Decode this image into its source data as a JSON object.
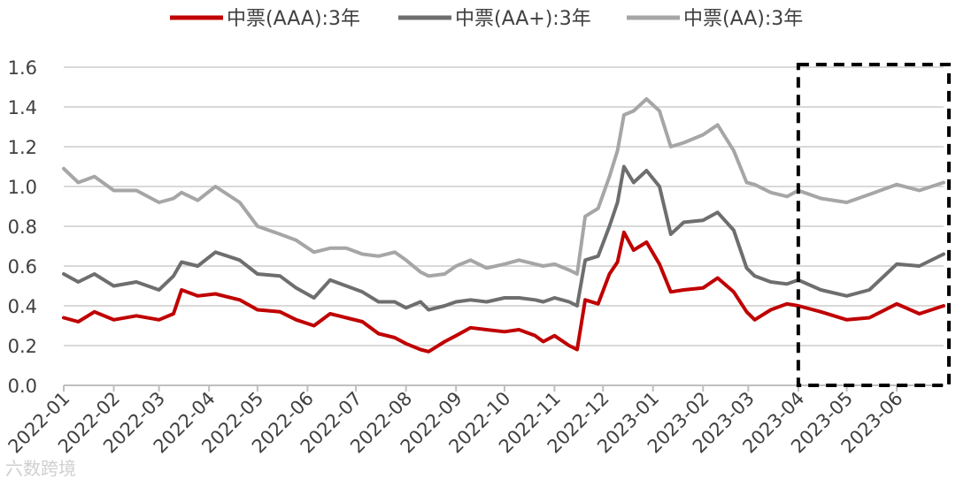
{
  "chart_data": {
    "type": "line",
    "title": "",
    "xlabel": "",
    "ylabel": "",
    "ylim": [
      0,
      1.6
    ],
    "yticks": [
      "0.0",
      "0.2",
      "0.4",
      "0.6",
      "0.8",
      "1.0",
      "1.2",
      "1.4",
      "1.6"
    ],
    "categories": [
      "2022-01",
      "2022-02",
      "2022-03",
      "2022-04",
      "2022-05",
      "2022-06",
      "2022-07",
      "2022-08",
      "2022-09",
      "2022-10",
      "2022-11",
      "2022-12",
      "2023-01",
      "2023-02",
      "2023-03",
      "2023-04",
      "2023-05",
      "2023-06"
    ],
    "grid": true,
    "legend_position": "top",
    "highlight_range": [
      "2023-04",
      "2023-06"
    ],
    "series": [
      {
        "name": "中票(AAA):3年",
        "color": "#c00000",
        "points": [
          [
            "2022-01-01",
            0.34
          ],
          [
            "2022-01-10",
            0.32
          ],
          [
            "2022-01-20",
            0.37
          ],
          [
            "2022-02-01",
            0.33
          ],
          [
            "2022-02-15",
            0.35
          ],
          [
            "2022-03-01",
            0.33
          ],
          [
            "2022-03-10",
            0.36
          ],
          [
            "2022-03-15",
            0.48
          ],
          [
            "2022-03-25",
            0.45
          ],
          [
            "2022-04-05",
            0.46
          ],
          [
            "2022-04-20",
            0.43
          ],
          [
            "2022-05-01",
            0.38
          ],
          [
            "2022-05-15",
            0.37
          ],
          [
            "2022-05-25",
            0.33
          ],
          [
            "2022-06-05",
            0.3
          ],
          [
            "2022-06-15",
            0.36
          ],
          [
            "2022-06-25",
            0.34
          ],
          [
            "2022-07-05",
            0.32
          ],
          [
            "2022-07-15",
            0.26
          ],
          [
            "2022-07-25",
            0.24
          ],
          [
            "2022-08-01",
            0.21
          ],
          [
            "2022-08-10",
            0.18
          ],
          [
            "2022-08-15",
            0.17
          ],
          [
            "2022-08-25",
            0.22
          ],
          [
            "2022-09-01",
            0.25
          ],
          [
            "2022-09-10",
            0.29
          ],
          [
            "2022-09-20",
            0.28
          ],
          [
            "2022-10-01",
            0.27
          ],
          [
            "2022-10-10",
            0.28
          ],
          [
            "2022-10-20",
            0.25
          ],
          [
            "2022-10-25",
            0.22
          ],
          [
            "2022-11-01",
            0.25
          ],
          [
            "2022-11-10",
            0.2
          ],
          [
            "2022-11-15",
            0.18
          ],
          [
            "2022-11-20",
            0.43
          ],
          [
            "2022-11-28",
            0.41
          ],
          [
            "2022-12-05",
            0.56
          ],
          [
            "2022-12-10",
            0.62
          ],
          [
            "2022-12-14",
            0.77
          ],
          [
            "2022-12-20",
            0.68
          ],
          [
            "2022-12-28",
            0.72
          ],
          [
            "2023-01-05",
            0.61
          ],
          [
            "2023-01-12",
            0.47
          ],
          [
            "2023-01-20",
            0.48
          ],
          [
            "2023-02-01",
            0.49
          ],
          [
            "2023-02-10",
            0.54
          ],
          [
            "2023-02-20",
            0.47
          ],
          [
            "2023-02-28",
            0.37
          ],
          [
            "2023-03-05",
            0.33
          ],
          [
            "2023-03-15",
            0.38
          ],
          [
            "2023-03-25",
            0.41
          ],
          [
            "2023-04-01",
            0.4
          ],
          [
            "2023-04-15",
            0.37
          ],
          [
            "2023-05-01",
            0.33
          ],
          [
            "2023-05-15",
            0.34
          ],
          [
            "2023-06-01",
            0.41
          ],
          [
            "2023-06-15",
            0.36
          ],
          [
            "2023-06-30",
            0.4
          ]
        ]
      },
      {
        "name": "中票(AA+):3年",
        "color": "#6e6e6e",
        "points": [
          [
            "2022-01-01",
            0.56
          ],
          [
            "2022-01-10",
            0.52
          ],
          [
            "2022-01-20",
            0.56
          ],
          [
            "2022-02-01",
            0.5
          ],
          [
            "2022-02-15",
            0.52
          ],
          [
            "2022-03-01",
            0.48
          ],
          [
            "2022-03-10",
            0.55
          ],
          [
            "2022-03-15",
            0.62
          ],
          [
            "2022-03-25",
            0.6
          ],
          [
            "2022-04-05",
            0.67
          ],
          [
            "2022-04-20",
            0.63
          ],
          [
            "2022-05-01",
            0.56
          ],
          [
            "2022-05-15",
            0.55
          ],
          [
            "2022-05-25",
            0.49
          ],
          [
            "2022-06-05",
            0.44
          ],
          [
            "2022-06-15",
            0.53
          ],
          [
            "2022-06-25",
            0.5
          ],
          [
            "2022-07-05",
            0.47
          ],
          [
            "2022-07-15",
            0.42
          ],
          [
            "2022-07-25",
            0.42
          ],
          [
            "2022-08-01",
            0.39
          ],
          [
            "2022-08-10",
            0.42
          ],
          [
            "2022-08-15",
            0.38
          ],
          [
            "2022-08-25",
            0.4
          ],
          [
            "2022-09-01",
            0.42
          ],
          [
            "2022-09-10",
            0.43
          ],
          [
            "2022-09-20",
            0.42
          ],
          [
            "2022-10-01",
            0.44
          ],
          [
            "2022-10-10",
            0.44
          ],
          [
            "2022-10-20",
            0.43
          ],
          [
            "2022-10-25",
            0.42
          ],
          [
            "2022-11-01",
            0.44
          ],
          [
            "2022-11-10",
            0.42
          ],
          [
            "2022-11-15",
            0.4
          ],
          [
            "2022-11-20",
            0.63
          ],
          [
            "2022-11-28",
            0.65
          ],
          [
            "2022-12-05",
            0.8
          ],
          [
            "2022-12-10",
            0.92
          ],
          [
            "2022-12-14",
            1.1
          ],
          [
            "2022-12-20",
            1.02
          ],
          [
            "2022-12-28",
            1.08
          ],
          [
            "2023-01-05",
            1.0
          ],
          [
            "2023-01-12",
            0.76
          ],
          [
            "2023-01-20",
            0.82
          ],
          [
            "2023-02-01",
            0.83
          ],
          [
            "2023-02-10",
            0.87
          ],
          [
            "2023-02-20",
            0.78
          ],
          [
            "2023-02-28",
            0.59
          ],
          [
            "2023-03-05",
            0.55
          ],
          [
            "2023-03-15",
            0.52
          ],
          [
            "2023-03-25",
            0.51
          ],
          [
            "2023-04-01",
            0.53
          ],
          [
            "2023-04-15",
            0.48
          ],
          [
            "2023-05-01",
            0.45
          ],
          [
            "2023-05-15",
            0.48
          ],
          [
            "2023-06-01",
            0.61
          ],
          [
            "2023-06-15",
            0.6
          ],
          [
            "2023-06-30",
            0.66
          ]
        ]
      },
      {
        "name": "中票(AA):3年",
        "color": "#a6a6a6",
        "points": [
          [
            "2022-01-01",
            1.09
          ],
          [
            "2022-01-10",
            1.02
          ],
          [
            "2022-01-20",
            1.05
          ],
          [
            "2022-02-01",
            0.98
          ],
          [
            "2022-02-15",
            0.98
          ],
          [
            "2022-03-01",
            0.92
          ],
          [
            "2022-03-10",
            0.94
          ],
          [
            "2022-03-15",
            0.97
          ],
          [
            "2022-03-25",
            0.93
          ],
          [
            "2022-04-05",
            1.0
          ],
          [
            "2022-04-20",
            0.92
          ],
          [
            "2022-05-01",
            0.8
          ],
          [
            "2022-05-15",
            0.76
          ],
          [
            "2022-05-25",
            0.73
          ],
          [
            "2022-06-05",
            0.67
          ],
          [
            "2022-06-15",
            0.69
          ],
          [
            "2022-06-25",
            0.69
          ],
          [
            "2022-07-05",
            0.66
          ],
          [
            "2022-07-15",
            0.65
          ],
          [
            "2022-07-25",
            0.67
          ],
          [
            "2022-08-01",
            0.63
          ],
          [
            "2022-08-10",
            0.57
          ],
          [
            "2022-08-15",
            0.55
          ],
          [
            "2022-08-25",
            0.56
          ],
          [
            "2022-09-01",
            0.6
          ],
          [
            "2022-09-10",
            0.63
          ],
          [
            "2022-09-20",
            0.59
          ],
          [
            "2022-10-01",
            0.61
          ],
          [
            "2022-10-10",
            0.63
          ],
          [
            "2022-10-20",
            0.61
          ],
          [
            "2022-10-25",
            0.6
          ],
          [
            "2022-11-01",
            0.61
          ],
          [
            "2022-11-10",
            0.58
          ],
          [
            "2022-11-15",
            0.56
          ],
          [
            "2022-11-20",
            0.85
          ],
          [
            "2022-11-28",
            0.89
          ],
          [
            "2022-12-05",
            1.05
          ],
          [
            "2022-12-10",
            1.18
          ],
          [
            "2022-12-14",
            1.36
          ],
          [
            "2022-12-20",
            1.38
          ],
          [
            "2022-12-28",
            1.44
          ],
          [
            "2023-01-05",
            1.38
          ],
          [
            "2023-01-12",
            1.2
          ],
          [
            "2023-01-20",
            1.22
          ],
          [
            "2023-02-01",
            1.26
          ],
          [
            "2023-02-10",
            1.31
          ],
          [
            "2023-02-20",
            1.18
          ],
          [
            "2023-02-28",
            1.02
          ],
          [
            "2023-03-05",
            1.01
          ],
          [
            "2023-03-15",
            0.97
          ],
          [
            "2023-03-25",
            0.95
          ],
          [
            "2023-04-01",
            0.98
          ],
          [
            "2023-04-15",
            0.94
          ],
          [
            "2023-05-01",
            0.92
          ],
          [
            "2023-05-15",
            0.96
          ],
          [
            "2023-06-01",
            1.01
          ],
          [
            "2023-06-15",
            0.98
          ],
          [
            "2023-06-30",
            1.02
          ]
        ]
      }
    ]
  },
  "watermark": "六数跨境"
}
